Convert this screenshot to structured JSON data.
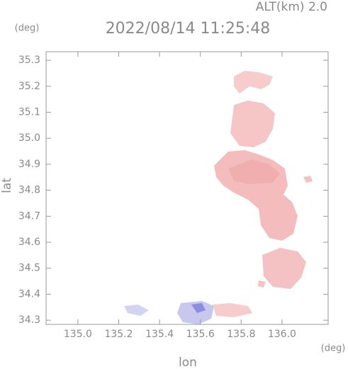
{
  "chart_data": {
    "type": "map",
    "title": "2022/08/14 11:25:48",
    "subtitle": "ALT(km) 2.0",
    "x_label": "lon",
    "y_label": "lat",
    "x_unit": "(deg)",
    "y_unit": "(deg)",
    "xlim": [
      134.844,
      136.226
    ],
    "ylim": [
      34.284,
      35.333
    ],
    "xticks": [
      {
        "value": 135.0,
        "label": "135.0"
      },
      135.2,
      135.4,
      135.6,
      135.8,
      {
        "value": 136.0,
        "label": "136.0"
      }
    ],
    "yticks": [
      34.3,
      34.4,
      34.5,
      34.6,
      34.7,
      34.8,
      34.9,
      {
        "value": 35.0,
        "label": "35.0"
      },
      35.1,
      35.2,
      35.3
    ]
  }
}
